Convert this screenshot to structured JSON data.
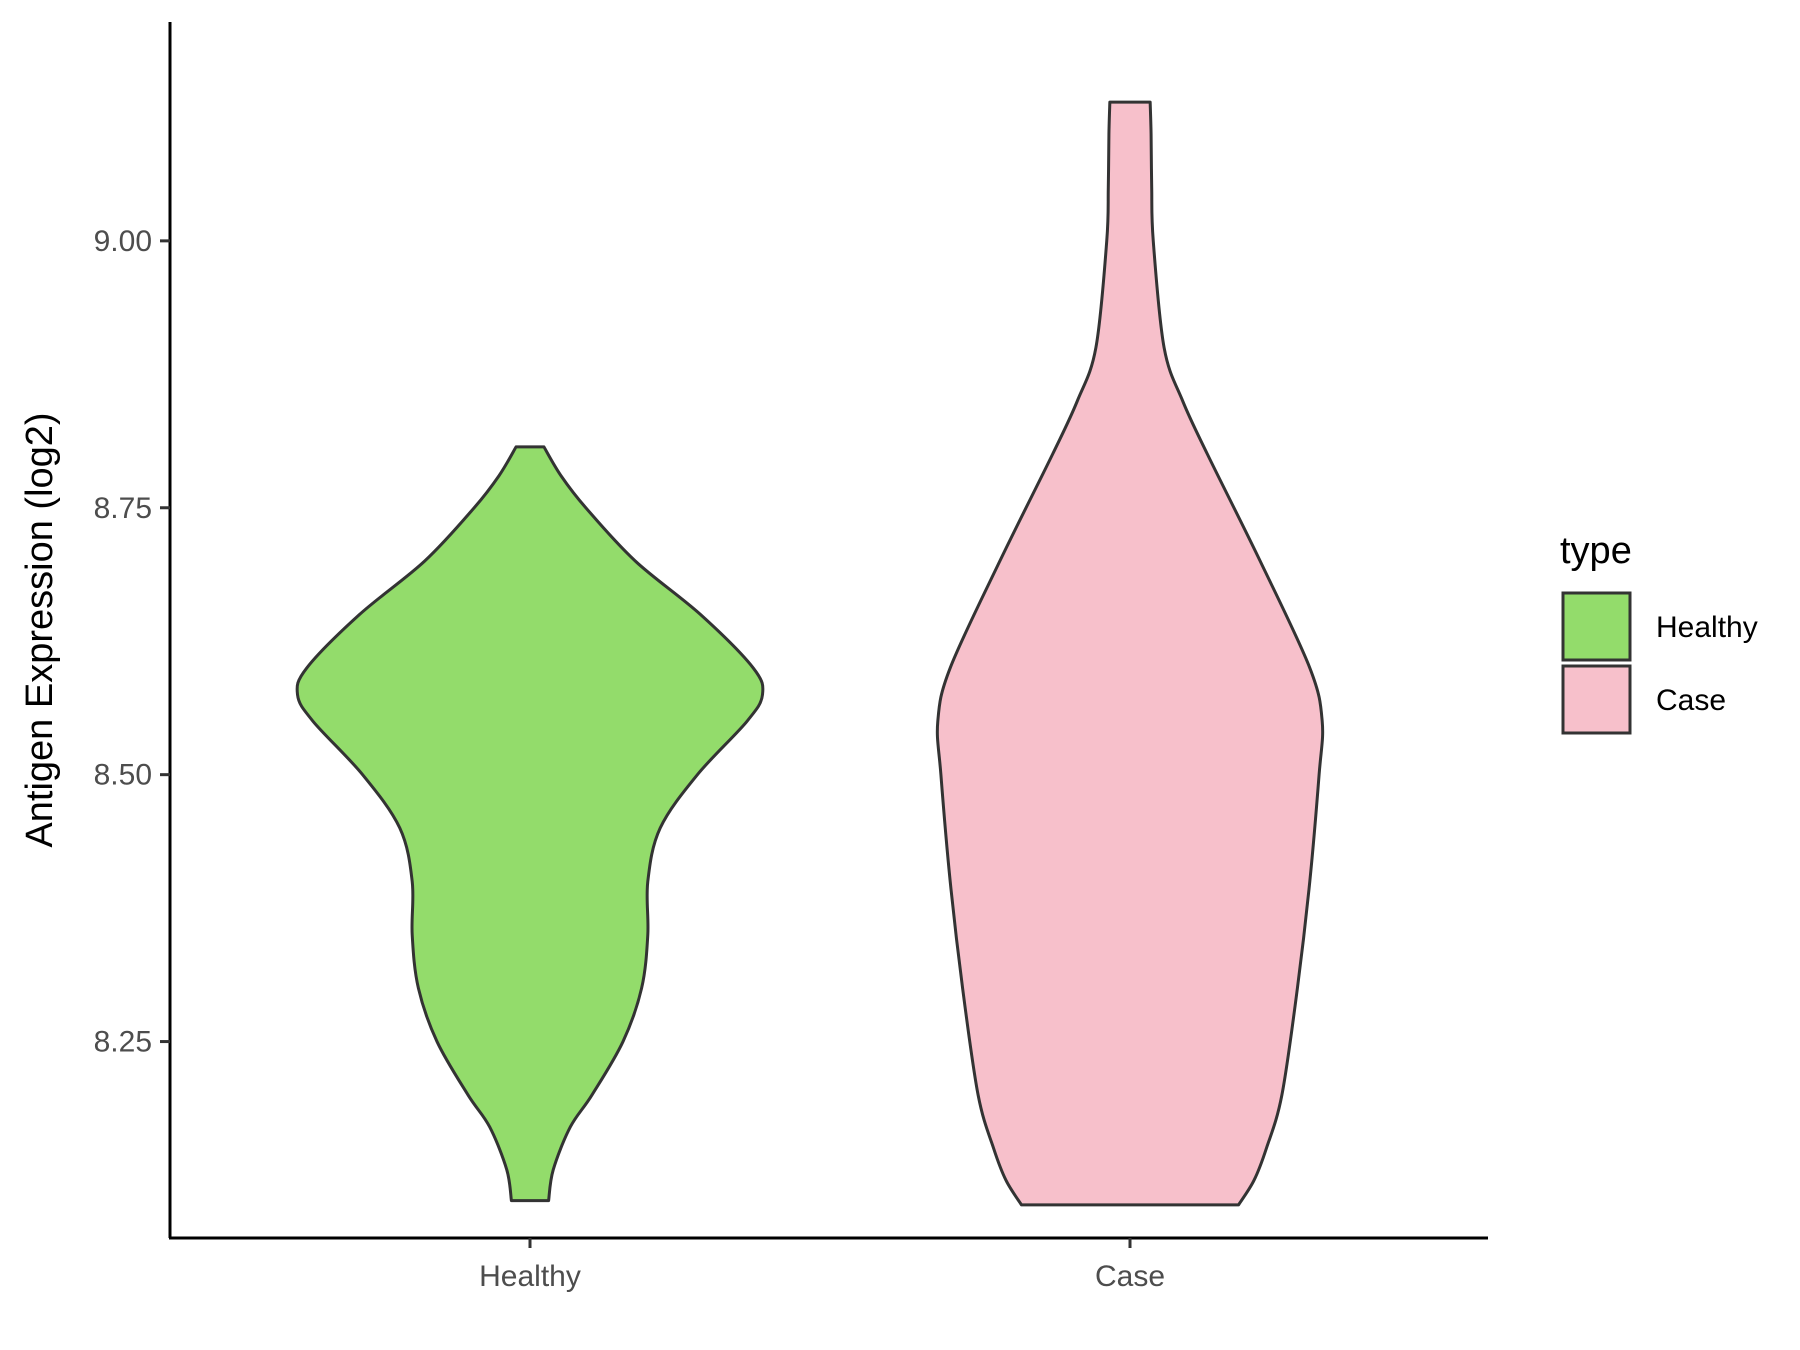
{
  "chart_data": {
    "type": "violin",
    "ylabel": "Antigen Expression (log2)",
    "xlabel": "",
    "categories": [
      "Healthy",
      "Case"
    ],
    "ylim": [
      8.066,
      9.205
    ],
    "yticks": [
      8.25,
      8.5,
      8.75,
      9.0
    ],
    "ytick_labels": [
      "8.25",
      "8.50",
      "8.75",
      "9.00"
    ],
    "grid": false,
    "legend": {
      "title": "type",
      "position": "right",
      "entries": [
        {
          "label": "Healthy",
          "color": "#93dc6b"
        },
        {
          "label": "Case",
          "color": "#f7c0cb"
        }
      ]
    },
    "series": [
      {
        "name": "Healthy",
        "color": "#93dc6b",
        "min": 8.101,
        "max": 8.807,
        "density": [
          [
            8.101,
            0.06
          ],
          [
            8.13,
            0.075
          ],
          [
            8.17,
            0.13
          ],
          [
            8.2,
            0.2
          ],
          [
            8.25,
            0.3
          ],
          [
            8.3,
            0.36
          ],
          [
            8.35,
            0.38
          ],
          [
            8.4,
            0.38
          ],
          [
            8.45,
            0.42
          ],
          [
            8.5,
            0.54
          ],
          [
            8.55,
            0.7
          ],
          [
            8.575,
            0.75
          ],
          [
            8.6,
            0.72
          ],
          [
            8.65,
            0.55
          ],
          [
            8.7,
            0.34
          ],
          [
            8.75,
            0.18
          ],
          [
            8.78,
            0.1
          ],
          [
            8.807,
            0.045
          ]
        ]
      },
      {
        "name": "Case",
        "color": "#f7c0cb",
        "min": 8.097,
        "max": 9.13,
        "density": [
          [
            8.097,
            0.35
          ],
          [
            8.12,
            0.4
          ],
          [
            8.15,
            0.44
          ],
          [
            8.2,
            0.49
          ],
          [
            8.3,
            0.54
          ],
          [
            8.4,
            0.58
          ],
          [
            8.5,
            0.61
          ],
          [
            8.55,
            0.62
          ],
          [
            8.6,
            0.58
          ],
          [
            8.7,
            0.42
          ],
          [
            8.8,
            0.25
          ],
          [
            8.85,
            0.17
          ],
          [
            8.9,
            0.11
          ],
          [
            9.0,
            0.075
          ],
          [
            9.05,
            0.07
          ],
          [
            9.1,
            0.068
          ],
          [
            9.13,
            0.065
          ]
        ]
      }
    ]
  }
}
